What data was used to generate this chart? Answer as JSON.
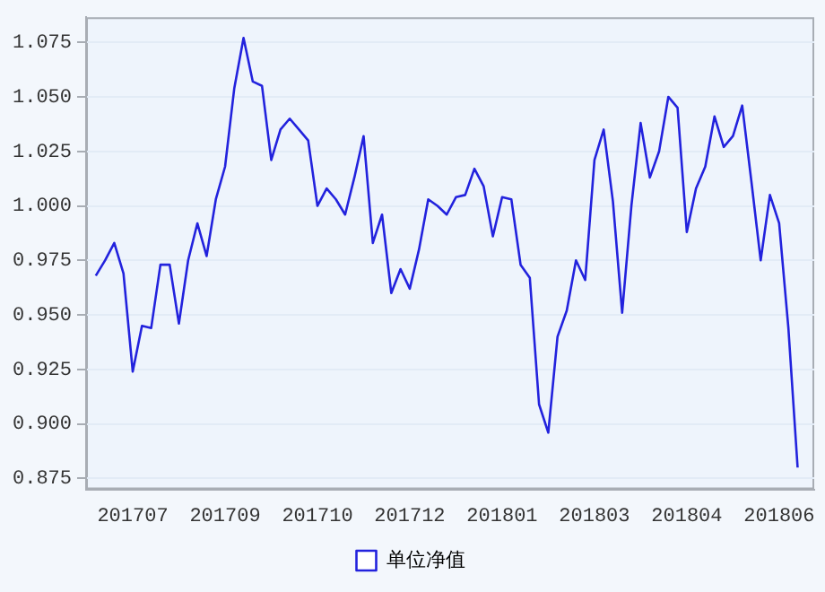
{
  "chart_data": {
    "type": "line",
    "categories": [
      null,
      null,
      null,
      null,
      "201707",
      null,
      null,
      null,
      null,
      null,
      null,
      null,
      null,
      null,
      "201709",
      null,
      null,
      null,
      null,
      null,
      null,
      null,
      null,
      null,
      "201710",
      null,
      null,
      null,
      null,
      null,
      null,
      null,
      null,
      null,
      "201712",
      null,
      null,
      null,
      null,
      null,
      null,
      null,
      null,
      null,
      "201801",
      null,
      null,
      null,
      null,
      null,
      null,
      null,
      null,
      null,
      "201803",
      null,
      null,
      null,
      null,
      null,
      null,
      null,
      null,
      null,
      "201804",
      null,
      null,
      null,
      null,
      null,
      null,
      null,
      null,
      null,
      "201806",
      null,
      null
    ],
    "series": [
      {
        "name": "单位净值",
        "color": "#2222dd",
        "values": [
          0.968,
          0.975,
          0.983,
          0.969,
          0.924,
          0.945,
          0.944,
          0.973,
          0.973,
          0.946,
          0.975,
          0.992,
          0.977,
          1.003,
          1.018,
          1.054,
          1.077,
          1.057,
          1.055,
          1.021,
          1.035,
          1.04,
          1.035,
          1.03,
          1.0,
          1.008,
          1.003,
          0.996,
          1.013,
          1.032,
          0.983,
          0.996,
          0.96,
          0.971,
          0.962,
          0.98,
          1.003,
          1.0,
          0.996,
          1.004,
          1.005,
          1.017,
          1.009,
          0.986,
          1.004,
          1.003,
          0.973,
          0.967,
          0.909,
          0.896,
          0.94,
          0.952,
          0.975,
          0.966,
          1.021,
          1.035,
          1.002,
          0.951,
          1.0,
          1.038,
          1.013,
          1.025,
          1.05,
          1.045,
          0.988,
          1.008,
          1.018,
          1.041,
          1.027,
          1.032,
          1.046,
          1.011,
          0.975,
          1.005,
          0.992,
          0.944,
          0.88
        ]
      }
    ],
    "ylim": [
      0.87,
      1.0865
    ],
    "yticks": [
      0.875,
      {
        "value": 0.9,
        "label": "0.900"
      },
      0.925,
      {
        "value": 0.95,
        "label": "0.950"
      },
      0.975,
      {
        "value": 1,
        "label": "1.000"
      },
      1.025,
      {
        "value": 1.05,
        "label": "1.050"
      },
      1.075
    ],
    "grid": "y",
    "legend": "bottom",
    "marker": "none",
    "line_style": "solid"
  }
}
